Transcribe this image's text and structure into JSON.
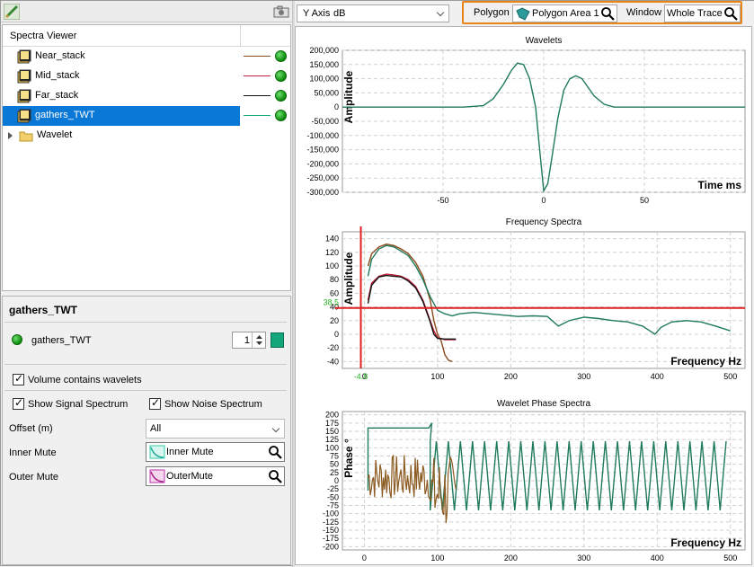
{
  "left_panel": {
    "tree_header": "Spectra Viewer",
    "tree_items": [
      {
        "label": "Near_stack",
        "line_color": "#8b4a1c"
      },
      {
        "label": "Mid_stack",
        "line_color": "#c0203a"
      },
      {
        "label": "Far_stack",
        "line_color": "#111111"
      },
      {
        "label": "gathers_TWT",
        "line_color": "#12a67a",
        "selected": true
      },
      {
        "label": "Wavelet"
      }
    ]
  },
  "properties": {
    "title": "gathers_TWT",
    "item_label": "gathers_TWT",
    "item_width": "1",
    "item_color": "#12a67a",
    "volume_contains_wavelets": "Volume contains wavelets",
    "show_signal_spectrum": "Show Signal Spectrum",
    "show_noise_spectrum": "Show Noise Spectrum",
    "offset_label": "Offset (m)",
    "offset_value": "All",
    "inner_mute_label": "Inner Mute",
    "inner_mute_value": "Inner Mute",
    "outer_mute_label": "Outer Mute",
    "outer_mute_value": "OuterMute"
  },
  "toolbar": {
    "y_axis_label": "Y Axis",
    "y_axis_value": "dB",
    "polygon_label": "Polygon",
    "polygon_value": "Polygon Area 1",
    "window_label": "Window",
    "window_value": "Whole Trace",
    "highlight_color": "#e8861a"
  },
  "chart_data": [
    {
      "type": "line",
      "title": "Wavelets",
      "xlabel": "Time ms",
      "ylabel": "Amplitude",
      "xlim": [
        -100,
        100
      ],
      "ylim": [
        -300000,
        200000
      ],
      "xticks": [
        "-50",
        "0",
        "50"
      ],
      "yticks": [
        "200,000",
        "150,000",
        "100,000",
        "50,000",
        "0",
        "-50,000",
        "-100,000",
        "-150,000",
        "-200,000",
        "-250,000",
        "-300,000"
      ],
      "series": [
        {
          "color": "#1f7a5c",
          "x": [
            -100,
            -40,
            -30,
            -25,
            -20,
            -16,
            -13,
            -10,
            -7,
            -4,
            -2,
            0,
            2,
            4,
            7,
            10,
            13,
            16,
            19,
            22,
            25,
            30,
            35,
            40,
            100
          ],
          "y": [
            0,
            0,
            5000,
            30000,
            80000,
            130000,
            155000,
            150000,
            100000,
            0,
            -150000,
            -295000,
            -270000,
            -180000,
            -40000,
            60000,
            100000,
            110000,
            100000,
            70000,
            40000,
            10000,
            0,
            0,
            0
          ]
        }
      ]
    },
    {
      "type": "line",
      "title": "Frequency Spectra",
      "xlabel": "Frequency Hz",
      "ylabel": "Amplitude",
      "xlim": [
        -30,
        520
      ],
      "ylim": [
        -50,
        150
      ],
      "xticks": [
        "0",
        "100",
        "200",
        "300",
        "400",
        "500"
      ],
      "yticks": [
        "140",
        "120",
        "100",
        "80",
        "60",
        "40",
        "20",
        "0",
        "-20",
        "-40"
      ],
      "crosshair": {
        "x": -4.8,
        "y": 38.5,
        "x_label": "-4.8",
        "y_label": "38.5",
        "color": "#e02020"
      },
      "series": [
        {
          "name": "Near_stack",
          "color": "#8b4a1c",
          "x": [
            5,
            10,
            20,
            30,
            40,
            50,
            60,
            70,
            80,
            90,
            95,
            100,
            105,
            110,
            115,
            120
          ],
          "y": [
            100,
            118,
            128,
            132,
            130,
            125,
            118,
            105,
            85,
            50,
            20,
            0,
            -10,
            -30,
            -38,
            -40
          ]
        },
        {
          "name": "Mid_stack",
          "color": "#c0203a",
          "x": [
            5,
            10,
            20,
            30,
            40,
            50,
            60,
            70,
            80,
            90,
            95,
            100,
            110,
            125
          ],
          "y": [
            50,
            75,
            85,
            88,
            87,
            85,
            80,
            70,
            50,
            20,
            5,
            -5,
            -8,
            -8
          ]
        },
        {
          "name": "Far_stack",
          "color": "#111111",
          "x": [
            5,
            10,
            20,
            30,
            40,
            50,
            60,
            70,
            80,
            90,
            95,
            100,
            110,
            125
          ],
          "y": [
            45,
            72,
            84,
            86,
            85,
            84,
            78,
            68,
            48,
            18,
            0,
            -6,
            -7,
            -7
          ]
        },
        {
          "name": "gathers_TWT",
          "color": "#1f7a5c",
          "x": [
            5,
            10,
            20,
            30,
            40,
            50,
            60,
            70,
            80,
            90,
            100,
            110,
            120,
            130,
            150,
            170,
            190,
            210,
            230,
            250,
            265,
            280,
            300,
            320,
            340,
            360,
            380,
            390,
            397,
            405,
            420,
            440,
            460,
            480,
            500
          ],
          "y": [
            85,
            110,
            125,
            130,
            128,
            122,
            115,
            100,
            80,
            55,
            35,
            30,
            27,
            30,
            32,
            30,
            28,
            26,
            27,
            26,
            12,
            20,
            25,
            23,
            20,
            18,
            12,
            5,
            0,
            10,
            18,
            20,
            18,
            12,
            5
          ]
        }
      ]
    },
    {
      "type": "line",
      "title": "Wavelet Phase Spectra",
      "xlabel": "Frequency Hz",
      "ylabel": "Phase °",
      "xlim": [
        -30,
        520
      ],
      "ylim": [
        -210,
        210
      ],
      "xticks": [
        "0",
        "100",
        "200",
        "300",
        "400",
        "500"
      ],
      "yticks": [
        "200",
        "175",
        "150",
        "125",
        "100",
        "75",
        "50",
        "25",
        "0",
        "-25",
        "-50",
        "-75",
        "-100",
        "-125",
        "-150",
        "-175",
        "-200"
      ],
      "series": [
        {
          "name": "gathers_TWT",
          "color": "#1f7a5c",
          "pattern": "sawtooth",
          "flat": {
            "x0": 5,
            "x1": 88,
            "y": 160
          },
          "saw": {
            "x0": 90,
            "x1": 500,
            "period": 16.5,
            "ymax": 120,
            "ymin": -90
          }
        },
        {
          "name": "noise",
          "color": "#8b5a20",
          "pattern": "noise",
          "x0": 5,
          "x1": 125,
          "ymin": -160,
          "ymax": 80
        }
      ]
    }
  ]
}
